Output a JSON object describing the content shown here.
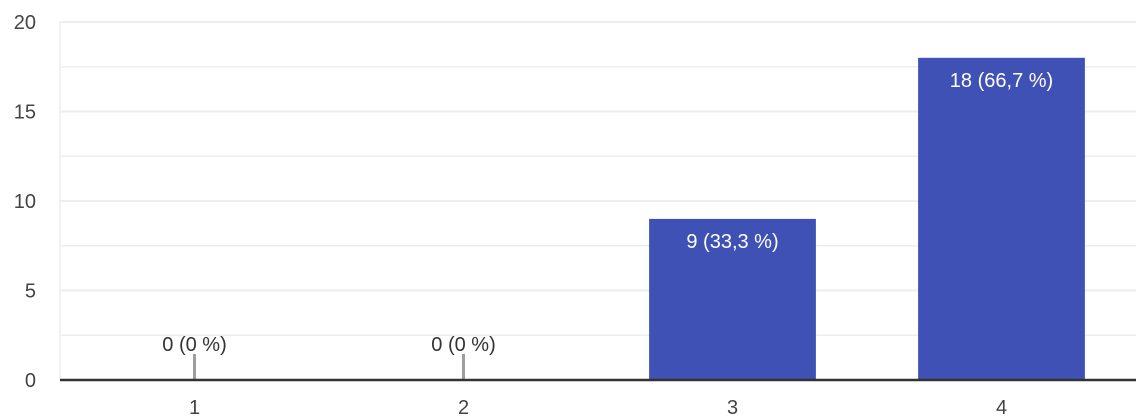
{
  "chart_data": {
    "type": "bar",
    "title": "",
    "xlabel": "",
    "ylabel": "",
    "categories": [
      "1",
      "2",
      "3",
      "4"
    ],
    "values": [
      0,
      0,
      9,
      18
    ],
    "data_labels": [
      "0 (0 %)",
      "0 (0 %)",
      "9 (33,3 %)",
      "18 (66,7 %)"
    ],
    "ylim": [
      0,
      20
    ],
    "y_ticks": [
      "0",
      "5",
      "10",
      "15",
      "20"
    ],
    "grid": true,
    "legend": "none"
  },
  "colors": {
    "bar": "#3f51b5",
    "gridline": "#eeeeee",
    "axis": "#333333",
    "zero_marker": "#9e9e9e",
    "label_inside": "#ffffff",
    "label_outside": "#333333"
  }
}
